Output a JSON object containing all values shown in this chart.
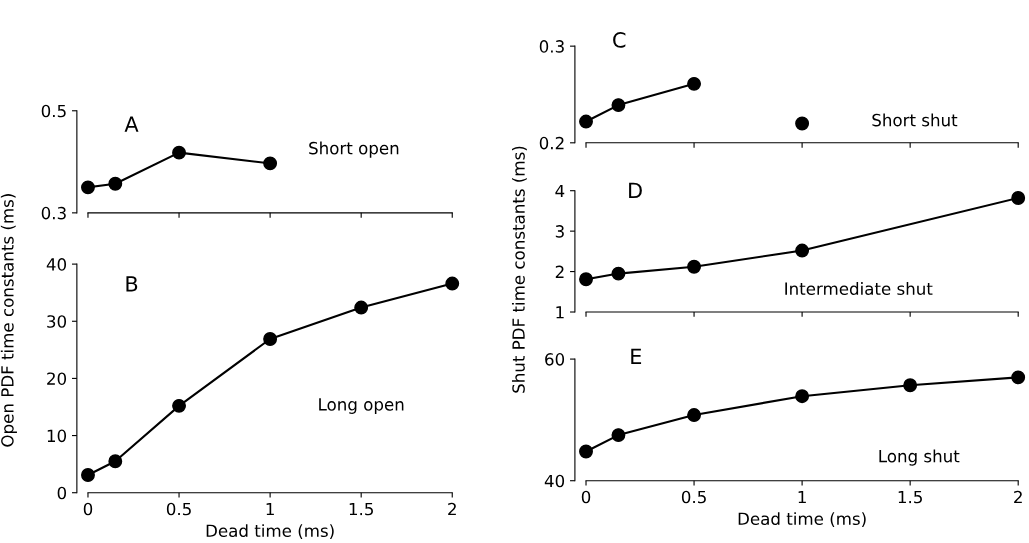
{
  "chart_data": [
    {
      "type": "line",
      "x": [
        0,
        0.15,
        0.5,
        1
      ],
      "values": [
        0.35,
        0.357,
        0.418,
        0.397
      ],
      "color": "#000000",
      "marker": "circle",
      "line_style": "solid",
      "xlim": [
        0,
        2
      ],
      "xticks": [
        0,
        0.5,
        1,
        1.5,
        2
      ],
      "ylim": [
        0.3,
        0.5
      ],
      "yticks": [
        0.3,
        0.5
      ],
      "tick_labels": "y",
      "grid": false,
      "legend": false,
      "annotations": [
        "A",
        "Short open"
      ]
    },
    {
      "type": "line",
      "x": [
        0,
        0.15,
        0.5,
        1,
        1.5,
        2
      ],
      "values": [
        3.1,
        5.5,
        15.2,
        26.9,
        32.4,
        36.6
      ],
      "color": "#000000",
      "marker": "circle",
      "line_style": "solid",
      "xlim": [
        0,
        2
      ],
      "xticks": [
        0,
        0.5,
        1,
        1.5,
        2
      ],
      "ylim": [
        0,
        40
      ],
      "yticks": [
        0,
        10,
        20,
        30,
        40
      ],
      "xlabel": "Dead time (ms)",
      "ylabel": "Open PDF time constants (ms)",
      "grid": false,
      "legend": false,
      "annotations": [
        "B",
        "Long open"
      ]
    },
    {
      "type": "line",
      "x": [
        0,
        0.15,
        0.5
      ],
      "values": [
        0.222,
        0.239,
        0.261
      ],
      "color": "#000000",
      "marker": "circle",
      "line_style": "solid",
      "xlim": [
        0,
        2
      ],
      "xticks": [
        0,
        0.5,
        1,
        1.5,
        2
      ],
      "ylim": [
        0.2,
        0.3
      ],
      "yticks": [
        0.2,
        0.3
      ],
      "tick_labels": "y",
      "grid": false,
      "legend": false,
      "annotations": [
        "C",
        "Short shut"
      ],
      "series": [
        {
          "type": "scatter",
          "x": [
            1
          ],
          "values": [
            0.22
          ],
          "color": "#000000"
        }
      ]
    },
    {
      "type": "line",
      "x": [
        0,
        0.15,
        0.5,
        1,
        2
      ],
      "values": [
        1.81,
        1.95,
        2.12,
        2.52,
        3.82
      ],
      "color": "#000000",
      "marker": "circle",
      "line_style": "solid",
      "xlim": [
        0,
        2
      ],
      "xticks": [
        0,
        0.5,
        1,
        1.5,
        2
      ],
      "ylim": [
        1,
        4
      ],
      "yticks": [
        1,
        2,
        3,
        4
      ],
      "tick_labels": "y",
      "ylabel": "Shut PDF time constants (ms)",
      "grid": false,
      "legend": false,
      "annotations": [
        "D",
        "Intermediate shut"
      ]
    },
    {
      "type": "line",
      "x": [
        0,
        0.15,
        0.5,
        1,
        1.5,
        2
      ],
      "values": [
        44.8,
        47.5,
        50.8,
        53.9,
        55.7,
        57.0
      ],
      "color": "#000000",
      "marker": "circle",
      "line_style": "solid",
      "xlim": [
        0,
        2
      ],
      "xticks": [
        0,
        0.5,
        1,
        1.5,
        2
      ],
      "ylim": [
        40,
        60
      ],
      "yticks": [
        40,
        60
      ],
      "xlabel": "Dead time (ms)",
      "grid": false,
      "legend": false,
      "annotations": [
        "E",
        "Long shut"
      ]
    }
  ]
}
